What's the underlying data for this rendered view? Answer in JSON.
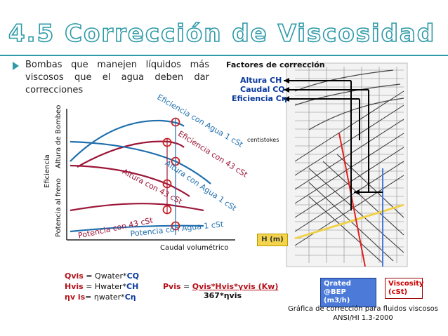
{
  "title": "4.5  Corrección de Viscosidad",
  "intro": "Bombas que manejen líquidos más viscosos que el agua deben dar correcciones",
  "left_chart": {
    "y_axis_labels": [
      "Eficiencia",
      "Altura de Bombeo",
      "Potencia al freno"
    ],
    "x_axis_label": "Caudal volumétrico",
    "curve_labels": {
      "eff_water": "Eficiencia con Agua 1 cSt",
      "eff_oil": "Eficiencia con 43 cSt",
      "head_water": "Altura con Agua 1 cSt",
      "head_oil": "Altura con 43 cSt",
      "power_oil": "Potencia con 43 cSt",
      "power_water": "Potencia con Agua 1 cSt"
    }
  },
  "factors": {
    "header": "Factores de corrección",
    "altura": "Altura  CH",
    "caudal": "Caudal  CQ",
    "eficiencia": "Eficiencia  Cη"
  },
  "nomogram": {
    "centistokes": "centistokes",
    "h_label": "H (m)",
    "qrated": "Qrated @BEP (m3/h)",
    "viscosity": "Viscosity (cSt)"
  },
  "formulas": {
    "qvis_lhs": "Qvis",
    "qvis_rhs1": " = Qwater*",
    "qvis_rhs2": "CQ",
    "hvis_lhs": "Hvis",
    "hvis_rhs1": " = Hwater*",
    "hvis_rhs2": "CH",
    "nvis_lhs": "ηv is",
    "nvis_rhs1": "= ηwater*",
    "nvis_rhs2": "Cη",
    "pvis_lhs": "Pvis",
    "pvis_eq": " = ",
    "pvis_num": "Qvis*Hvis*γvis (Kw)",
    "pvis_den": "367*ηvis"
  },
  "caption": {
    "line1": "Gráfica de corrección para fluidos viscosos",
    "line2": "ANSI/HI 1.3-2000"
  },
  "colors": {
    "title": "#2e9aa8",
    "water_curve": "#1f6fae",
    "oil_curve": "#9c1638",
    "marker": "#d21f1f",
    "formula_red": "#b3121a",
    "formula_blue": "#0a3a9c"
  }
}
